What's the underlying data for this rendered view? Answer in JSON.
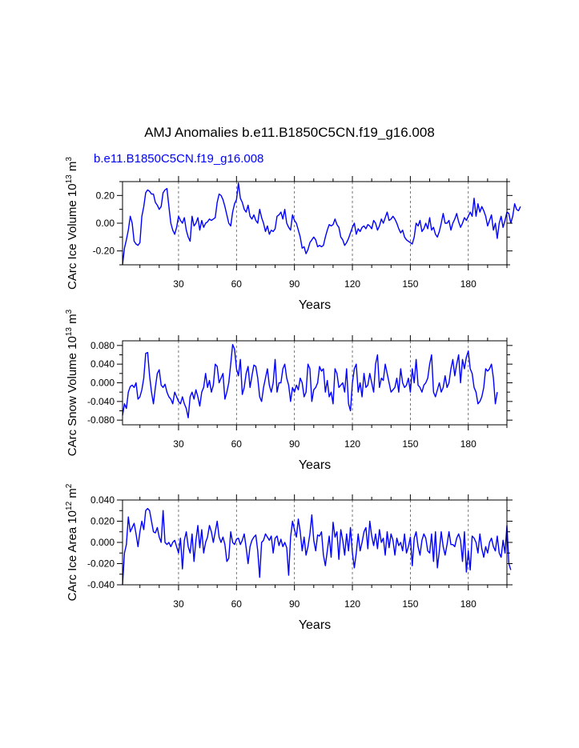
{
  "title": "AMJ Anomalies b.e11.B1850C5CN.f19_g16.008",
  "case_label": "b.e11.B1850C5CN.f19_g16.008",
  "colors": {
    "line": "#0000ff",
    "axes": "#000000",
    "grid": "#555555",
    "case_label": "#0000ff"
  },
  "chart_data": [
    {
      "type": "line",
      "id": "ice-volume",
      "ylabel_main": "CArc Ice Volume 10",
      "ylabel_exp": "13",
      "ylabel_unit": " m",
      "ylabel_unit_exp": "3",
      "xlabel": "Years",
      "xlim": [
        1,
        200
      ],
      "ylim": [
        -0.3,
        0.3
      ],
      "xticks": [
        30,
        60,
        90,
        120,
        150,
        180
      ],
      "xtick_labels": [
        "30",
        "60",
        "90",
        "120",
        "150",
        "180"
      ],
      "yticks": [
        -0.2,
        0.0,
        0.2
      ],
      "ytick_labels": [
        "-0.20",
        "0.00",
        "0.20"
      ],
      "yminor": [
        -0.3,
        -0.1,
        0.1,
        0.3
      ],
      "grid_x": [
        30,
        60,
        90,
        120,
        150,
        180
      ],
      "y": [
        -0.3,
        -0.18,
        -0.12,
        -0.05,
        0.05,
        0.0,
        -0.13,
        -0.15,
        -0.16,
        -0.14,
        0.05,
        0.12,
        0.22,
        0.24,
        0.23,
        0.21,
        0.21,
        0.15,
        0.13,
        0.1,
        0.12,
        0.22,
        0.24,
        0.25,
        0.12,
        0.0,
        -0.05,
        -0.08,
        -0.03,
        0.05,
        0.02,
        0.0,
        0.04,
        -0.05,
        -0.1,
        -0.13,
        0.05,
        -0.02,
        0.0,
        0.04,
        -0.05,
        0.02,
        -0.03,
        0.0,
        0.01,
        0.03,
        0.02,
        0.03,
        0.04,
        0.15,
        0.21,
        0.2,
        0.17,
        0.12,
        0.06,
        0.0,
        -0.02,
        0.08,
        0.14,
        0.17,
        0.29,
        0.18,
        0.15,
        0.1,
        0.08,
        0.13,
        0.05,
        0.03,
        0.06,
        0.02,
        0.0,
        0.1,
        0.04,
        0.0,
        -0.06,
        -0.02,
        -0.08,
        -0.05,
        -0.06,
        -0.04,
        0.05,
        0.06,
        0.08,
        0.03,
        0.1,
        0.0,
        -0.03,
        -0.05,
        0.06,
        0.02,
        0.0,
        -0.05,
        -0.1,
        -0.18,
        -0.17,
        -0.22,
        -0.19,
        -0.14,
        -0.12,
        -0.1,
        -0.12,
        -0.17,
        -0.16,
        -0.17,
        -0.16,
        -0.1,
        -0.05,
        -0.01,
        -0.02,
        -0.01,
        0.03,
        -0.01,
        -0.03,
        -0.1,
        -0.12,
        -0.16,
        -0.14,
        -0.11,
        -0.07,
        -0.03,
        0.0,
        -0.08,
        -0.04,
        -0.06,
        -0.03,
        -0.02,
        -0.04,
        -0.01,
        -0.02,
        -0.04,
        0.02,
        0.0,
        -0.05,
        -0.02,
        0.03,
        0.0,
        0.04,
        0.08,
        0.02,
        0.03,
        0.05,
        0.03,
        0.0,
        -0.04,
        -0.07,
        -0.05,
        -0.1,
        -0.12,
        -0.13,
        -0.14,
        -0.15,
        -0.1,
        0.0,
        -0.02,
        0.02,
        -0.06,
        -0.04,
        0.0,
        -0.04,
        0.04,
        -0.05,
        -0.03,
        -0.08,
        -0.1,
        -0.06,
        0.0,
        0.07,
        0.0,
        0.0,
        0.02,
        -0.05,
        0.0,
        0.03,
        0.07,
        0.01,
        -0.03,
        0.0,
        0.04,
        0.02,
        0.05,
        0.08,
        0.05,
        0.18,
        0.05,
        0.14,
        0.08,
        0.12,
        0.09,
        0.05,
        -0.02,
        0.02,
        0.06,
        -0.05,
        0.0,
        -0.11,
        0.0,
        0.05,
        -0.03,
        0.02,
        0.08,
        0.07,
        0.0,
        0.05,
        0.14,
        0.1,
        0.09,
        0.12
      ]
    },
    {
      "type": "line",
      "id": "snow-volume",
      "ylabel_main": "CArc Snow Volume 10",
      "ylabel_exp": "13",
      "ylabel_unit": " m",
      "ylabel_unit_exp": "3",
      "xlabel": "Years",
      "xlim": [
        1,
        200
      ],
      "ylim": [
        -0.09,
        0.09
      ],
      "xticks": [
        30,
        60,
        90,
        120,
        150,
        180
      ],
      "xtick_labels": [
        "30",
        "60",
        "90",
        "120",
        "150",
        "180"
      ],
      "yticks": [
        -0.08,
        -0.04,
        0.0,
        0.04,
        0.08
      ],
      "ytick_labels": [
        "-0.080",
        "-0.040",
        "0.000",
        "0.040",
        "0.080"
      ],
      "yminor": [
        -0.06,
        -0.02,
        0.02,
        0.06
      ],
      "grid_x": [
        30,
        60,
        90,
        120,
        150,
        180
      ],
      "y": [
        -0.07,
        -0.045,
        -0.055,
        -0.02,
        -0.008,
        -0.005,
        -0.01,
        0.0,
        -0.035,
        -0.03,
        -0.015,
        0.01,
        0.063,
        0.065,
        0.015,
        -0.02,
        -0.045,
        -0.01,
        0.02,
        0.028,
        -0.005,
        -0.01,
        -0.003,
        -0.02,
        -0.03,
        -0.035,
        -0.045,
        -0.02,
        -0.03,
        -0.04,
        -0.045,
        -0.03,
        -0.045,
        -0.055,
        -0.075,
        -0.03,
        -0.02,
        -0.035,
        -0.015,
        -0.03,
        -0.05,
        -0.02,
        -0.01,
        0.02,
        -0.01,
        0.005,
        -0.02,
        -0.005,
        0.04,
        0.035,
        0.0,
        0.01,
        0.02,
        -0.035,
        -0.02,
        0.0,
        0.04,
        0.082,
        0.072,
        0.03,
        0.015,
        0.05,
        -0.025,
        -0.01,
        0.02,
        0.035,
        -0.01,
        0.015,
        0.038,
        0.035,
        0.01,
        -0.03,
        -0.04,
        -0.01,
        0.01,
        0.03,
        -0.005,
        -0.02,
        0.0,
        0.05,
        -0.02,
        0.0,
        0.0,
        0.03,
        0.04,
        0.01,
        -0.005,
        -0.04,
        -0.01,
        -0.02,
        -0.005,
        -0.015,
        0.01,
        0.0,
        -0.03,
        -0.02,
        0.04,
        0.03,
        -0.04,
        -0.015,
        -0.01,
        0.0,
        0.035,
        0.025,
        0.03,
        -0.02,
        0.005,
        -0.03,
        -0.02,
        -0.045,
        0.03,
        0.02,
        -0.01,
        -0.005,
        0.0,
        -0.02,
        0.03,
        -0.045,
        -0.06,
        0.0,
        0.03,
        0.04,
        -0.02,
        0.0,
        -0.03,
        0.02,
        -0.01,
        -0.005,
        0.02,
        0.0,
        -0.02,
        0.04,
        0.06,
        -0.01,
        0.01,
        0.005,
        0.04,
        0.02,
        0.0,
        -0.02,
        -0.015,
        -0.01,
        0.01,
        -0.02,
        0.03,
        0.0,
        -0.01,
        -0.005,
        0.01,
        -0.02,
        0.03,
        0.0,
        0.05,
        -0.005,
        -0.01,
        -0.02,
        -0.005,
        0.0,
        0.01,
        0.04,
        0.06,
        -0.02,
        -0.03,
        -0.015,
        0.0,
        -0.02,
        -0.01,
        0.015,
        -0.01,
        0.0,
        0.03,
        0.05,
        0.015,
        0.04,
        0.06,
        0.0,
        0.05,
        0.03,
        0.055,
        0.068,
        0.03,
        0.02,
        -0.01,
        -0.02,
        -0.045,
        -0.04,
        -0.03,
        -0.01,
        0.03,
        0.025,
        0.03,
        0.04,
        0.01,
        -0.045,
        -0.02
      ]
    },
    {
      "type": "line",
      "id": "ice-area",
      "ylabel_main": "CArc Ice Area 10",
      "ylabel_exp": "12",
      "ylabel_unit": " m",
      "ylabel_unit_exp": "2",
      "xlabel": "Years",
      "xlim": [
        1,
        200
      ],
      "ylim": [
        -0.04,
        0.04
      ],
      "xticks": [
        30,
        60,
        90,
        120,
        150,
        180
      ],
      "xtick_labels": [
        "30",
        "60",
        "90",
        "120",
        "150",
        "180"
      ],
      "yticks": [
        -0.04,
        -0.02,
        0.0,
        0.02,
        0.04
      ],
      "ytick_labels": [
        "-0.040",
        "-0.020",
        "0.000",
        "0.020",
        "0.040"
      ],
      "yminor": [
        -0.03,
        -0.01,
        0.01,
        0.03
      ],
      "grid_x": [
        30,
        60,
        90,
        120,
        150,
        180
      ],
      "y": [
        -0.04,
        -0.01,
        -0.002,
        0.024,
        0.01,
        0.014,
        0.018,
        0.008,
        -0.004,
        0.01,
        0.02,
        0.012,
        0.03,
        0.032,
        0.03,
        0.02,
        0.01,
        0.009,
        0.014,
        0.005,
        0.0,
        0.03,
        0.0,
        -0.002,
        0.0,
        -0.004,
        0.0,
        0.002,
        -0.004,
        -0.01,
        0.004,
        -0.025,
        0.002,
        0.01,
        -0.004,
        -0.01,
        0.008,
        -0.018,
        0.002,
        0.016,
        -0.005,
        0.012,
        -0.01,
        0.0,
        0.005,
        0.016,
        0.01,
        0.0,
        0.01,
        0.02,
        0.005,
        0.0,
        0.005,
        -0.002,
        -0.018,
        -0.015,
        0.01,
        0.0,
        -0.002,
        0.003,
        0.004,
        -0.002,
        0.002,
        0.008,
        -0.005,
        -0.02,
        -0.004,
        0.002,
        0.005,
        0.007,
        -0.008,
        -0.033,
        0.0,
        0.002,
        0.008,
        0.005,
        0.002,
        0.006,
        -0.01,
        0.004,
        0.006,
        -0.003,
        0.003,
        -0.004,
        0.0,
        -0.005,
        -0.031,
        0.005,
        0.02,
        0.012,
        0.005,
        0.022,
        0.01,
        -0.008,
        0.005,
        -0.012,
        -0.004,
        0.008,
        0.026,
        0.002,
        -0.008,
        0.007,
        0.006,
        0.01,
        -0.012,
        -0.022,
        -0.008,
        0.006,
        -0.014,
        0.019,
        0.005,
        0.01,
        -0.016,
        0.012,
        0.002,
        -0.012,
        0.008,
        -0.008,
        0.014,
        -0.01,
        -0.024,
        -0.01,
        0.008,
        -0.008,
        0.0,
        0.01,
        0.014,
        -0.006,
        0.02,
        0.006,
        -0.003,
        0.008,
        -0.006,
        0.012,
        0.0,
        0.004,
        -0.012,
        0.01,
        -0.005,
        0.008,
        0.002,
        -0.012,
        0.004,
        -0.003,
        0.0,
        -0.008,
        0.008,
        -0.01,
        -0.004,
        0.005,
        -0.022,
        0.004,
        0.01,
        -0.004,
        -0.012,
        0.002,
        0.008,
        0.004,
        -0.008,
        -0.01,
        0.008,
        -0.018,
        0.01,
        -0.024,
        -0.008,
        0.01,
        -0.004,
        -0.012,
        -0.002,
        0.01,
        -0.002,
        -0.002,
        -0.004,
        0.004,
        0.008,
        0.002,
        -0.018,
        0.01,
        -0.028,
        -0.008,
        -0.026,
        0.006,
        0.004,
        0.0,
        -0.01,
        0.008,
        -0.006,
        -0.014,
        -0.004,
        -0.01,
        0.0,
        0.004,
        -0.004,
        -0.008,
        0.006,
        -0.01,
        -0.014,
        0.002,
        -0.01,
        0.016,
        -0.02,
        -0.026
      ]
    }
  ]
}
